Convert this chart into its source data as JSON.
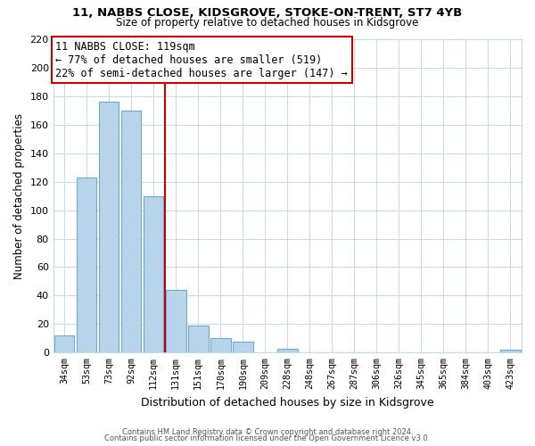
{
  "title1": "11, NABBS CLOSE, KIDSGROVE, STOKE-ON-TRENT, ST7 4YB",
  "title2": "Size of property relative to detached houses in Kidsgrove",
  "xlabel": "Distribution of detached houses by size in Kidsgrove",
  "ylabel": "Number of detached properties",
  "bar_labels": [
    "34sqm",
    "53sqm",
    "73sqm",
    "92sqm",
    "112sqm",
    "131sqm",
    "151sqm",
    "170sqm",
    "190sqm",
    "209sqm",
    "228sqm",
    "248sqm",
    "267sqm",
    "287sqm",
    "306sqm",
    "326sqm",
    "345sqm",
    "365sqm",
    "384sqm",
    "403sqm",
    "423sqm"
  ],
  "bar_values": [
    12,
    123,
    176,
    170,
    110,
    44,
    19,
    10,
    8,
    0,
    3,
    0,
    0,
    0,
    0,
    0,
    0,
    0,
    0,
    0,
    2
  ],
  "bar_color": "#b8d4ea",
  "bar_edge_color": "#6aaad4",
  "ylim": [
    0,
    220
  ],
  "yticks": [
    0,
    20,
    40,
    60,
    80,
    100,
    120,
    140,
    160,
    180,
    200,
    220
  ],
  "property_line_x": 4.5,
  "property_line_color": "#cc0000",
  "annotation_line1": "11 NABBS CLOSE: 119sqm",
  "annotation_line2": "← 77% of detached houses are smaller (519)",
  "annotation_line3": "22% of semi-detached houses are larger (147) →",
  "annotation_box_color": "#ffffff",
  "annotation_border_color": "#cc0000",
  "footer1": "Contains HM Land Registry data © Crown copyright and database right 2024.",
  "footer2": "Contains public sector information licensed under the Open Government Licence v3.0.",
  "grid_color": "#c8d8e8",
  "title1_fontsize": 9.5,
  "title2_fontsize": 8.5,
  "ylabel_fontsize": 8.5,
  "xlabel_fontsize": 9.0
}
